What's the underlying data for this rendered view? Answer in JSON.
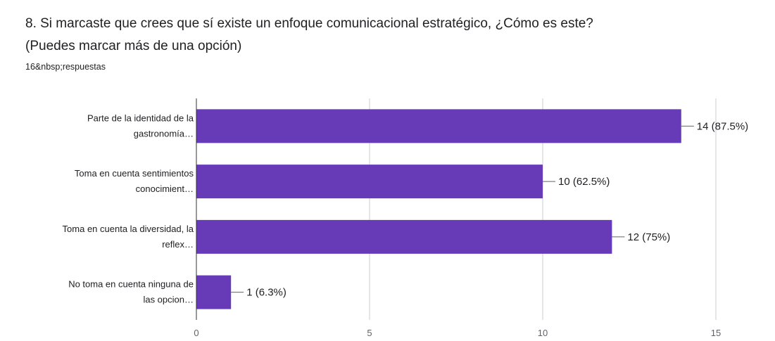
{
  "question": {
    "title_line1": "8. Si marcaste que crees que sí existe un enfoque comunicacional estratégico, ¿Cómo es este?",
    "title_line2": "(Puedes marcar más de una opción)",
    "responses": "16&nbsp;respuestas"
  },
  "colors": {
    "bar": "#673ab7",
    "axis": "#333333",
    "grid": "#cccccc"
  },
  "chart_data": {
    "type": "bar",
    "orientation": "horizontal",
    "categories": [
      [
        "Parte de la identidad de la",
        "gastronomía…"
      ],
      [
        "Toma en cuenta sentimientos",
        "conocimient…"
      ],
      [
        "Toma en cuenta la diversidad, la",
        "reflex…"
      ],
      [
        "No toma en cuenta ninguna de",
        "las opcion…"
      ]
    ],
    "values": [
      14,
      10,
      12,
      1
    ],
    "data_labels": [
      "14 (87.5%)",
      "10 (62.5%)",
      "12 (75%)",
      "1 (6.3%)"
    ],
    "xlim": [
      0,
      15
    ],
    "xticks": [
      0,
      5,
      10,
      15
    ],
    "grid": true
  }
}
